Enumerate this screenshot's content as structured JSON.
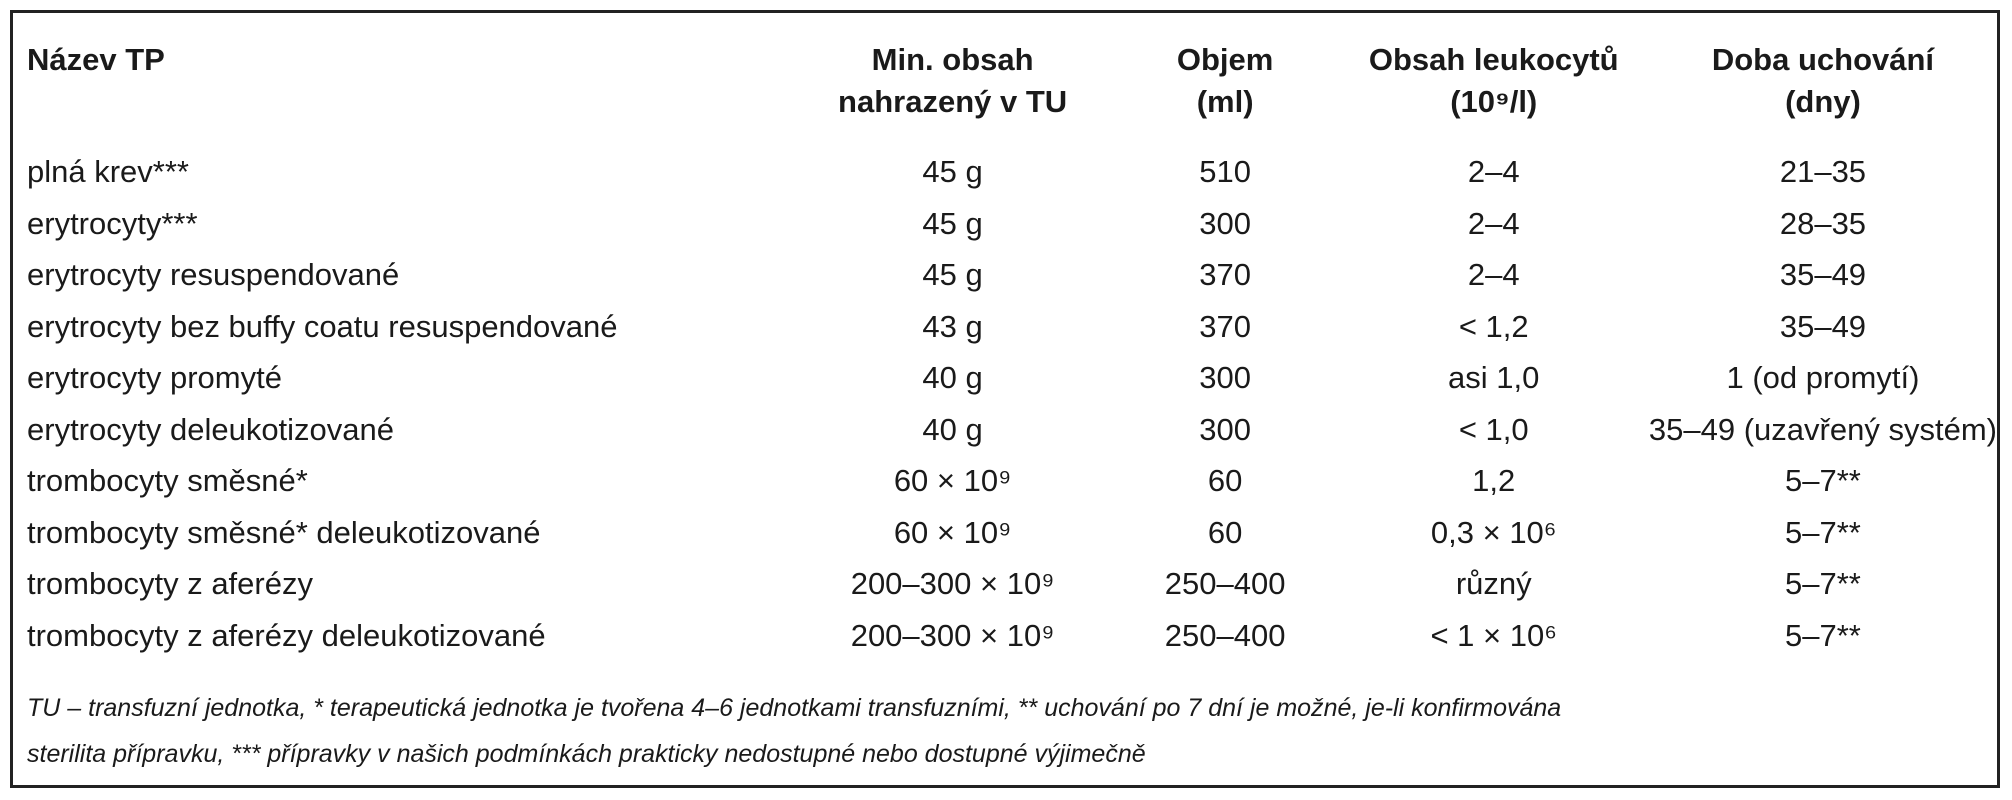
{
  "table": {
    "headers": [
      {
        "line1": "Název TP",
        "line2": ""
      },
      {
        "line1": "Min. obsah",
        "line2": "nahrazený v TU"
      },
      {
        "line1": "Objem",
        "line2": "(ml)"
      },
      {
        "line1": "Obsah leukocytů",
        "line2": "(10⁹/l)"
      },
      {
        "line1": "Doba uchování",
        "line2": "(dny)"
      }
    ],
    "rows": [
      [
        "plná krev***",
        "45 g",
        "510",
        "2–4",
        "21–35"
      ],
      [
        "erytrocyty***",
        "45 g",
        "300",
        "2–4",
        "28–35"
      ],
      [
        "erytrocyty resuspendované",
        "45 g",
        "370",
        "2–4",
        "35–49"
      ],
      [
        "erytrocyty bez buffy coatu resuspendované",
        "43 g",
        "370",
        "< 1,2",
        "35–49"
      ],
      [
        "erytrocyty promyté",
        "40 g",
        "300",
        "asi 1,0",
        "1 (od promytí)"
      ],
      [
        "erytrocyty deleukotizované",
        "40 g",
        "300",
        "< 1,0",
        "35–49 (uzavřený systém)"
      ],
      [
        "trombocyty směsné*",
        "60 × 10⁹",
        "60",
        "1,2",
        "5–7**"
      ],
      [
        "trombocyty směsné* deleukotizované",
        "60 × 10⁹",
        "60",
        "0,3 × 10⁶",
        "5–7**"
      ],
      [
        "trombocyty z aferézy",
        "200–300 × 10⁹",
        "250–400",
        "různý",
        "5–7**"
      ],
      [
        "trombocyty z aferézy deleukotizované",
        "200–300 × 10⁹",
        "250–400",
        "< 1 × 10⁶",
        "5–7**"
      ]
    ]
  },
  "footnote": {
    "line1": "TU – transfuzní jednotka, * terapeutická jednotka je tvořena 4–6 jednotkami transfuzními, ** uchování po 7 dní je možné, je-li konfirmována",
    "line2": "sterilita přípravku, *** přípravky v našich podmínkách prakticky nedostupné nebo dostupné výjimečně"
  }
}
